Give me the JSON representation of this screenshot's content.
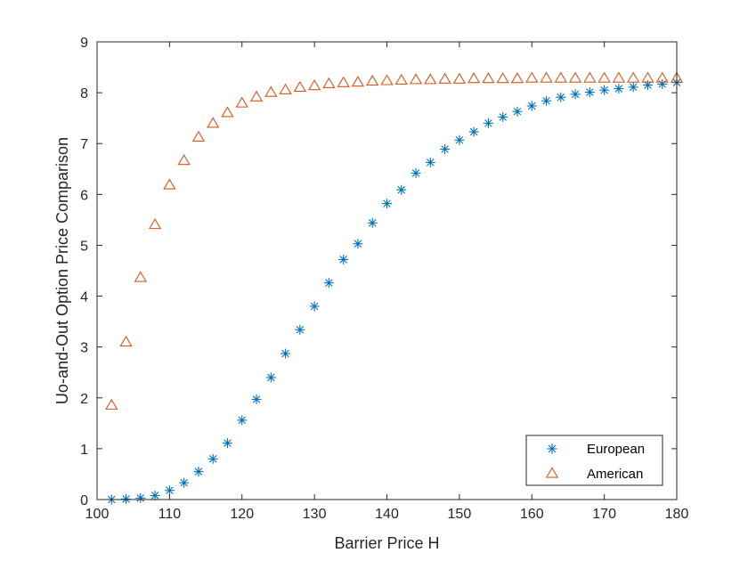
{
  "chart_data": {
    "type": "scatter",
    "title": "",
    "xlabel": "Barrier Price H",
    "ylabel": "Uo-and-Out Option Price Comparison",
    "xlim": [
      100,
      180
    ],
    "ylim": [
      0,
      9
    ],
    "xticks": [
      100,
      110,
      120,
      130,
      140,
      150,
      160,
      170,
      180
    ],
    "yticks": [
      0,
      1,
      2,
      3,
      4,
      5,
      6,
      7,
      8,
      9
    ],
    "grid": false,
    "legend_position": "bottom-right",
    "x": [
      102,
      104,
      106,
      108,
      110,
      112,
      114,
      116,
      118,
      120,
      122,
      124,
      126,
      128,
      130,
      132,
      134,
      136,
      138,
      140,
      142,
      144,
      146,
      148,
      150,
      152,
      154,
      156,
      158,
      160,
      162,
      164,
      166,
      168,
      170,
      172,
      174,
      176,
      178,
      180
    ],
    "series": [
      {
        "name": "European",
        "marker": "asterisk",
        "color": "#0072BD",
        "values": [
          0.0,
          0.01,
          0.03,
          0.08,
          0.18,
          0.33,
          0.55,
          0.8,
          1.11,
          1.56,
          1.97,
          2.4,
          2.87,
          3.34,
          3.8,
          4.26,
          4.72,
          5.03,
          5.44,
          5.82,
          6.09,
          6.42,
          6.63,
          6.89,
          7.07,
          7.23,
          7.4,
          7.52,
          7.63,
          7.74,
          7.84,
          7.91,
          7.97,
          8.01,
          8.05,
          8.08,
          8.11,
          8.15,
          8.17,
          8.2
        ]
      },
      {
        "name": "American",
        "marker": "triangle",
        "color": "#D95319",
        "values": [
          1.85,
          3.09,
          4.36,
          5.4,
          6.18,
          6.66,
          7.12,
          7.39,
          7.6,
          7.79,
          7.91,
          8.0,
          8.05,
          8.1,
          8.13,
          8.17,
          8.19,
          8.2,
          8.22,
          8.23,
          8.24,
          8.25,
          8.25,
          8.26,
          8.26,
          8.27,
          8.27,
          8.27,
          8.27,
          8.28,
          8.28,
          8.28,
          8.28,
          8.28,
          8.28,
          8.28,
          8.28,
          8.28,
          8.28,
          8.28
        ]
      }
    ]
  }
}
